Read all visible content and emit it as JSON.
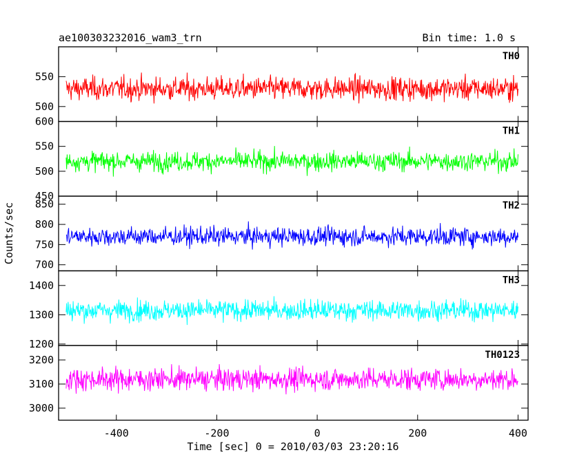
{
  "chart_data": {
    "type": "line",
    "title": "ae100303232016_wam3_trn",
    "subtitle": "Bin time: 1.0 s",
    "xlabel": "Time [sec] 0 = 2010/03/03 23:20:16",
    "ylabel": "Counts/sec",
    "xlim": [
      -515,
      420
    ],
    "x_ticks": [
      -400,
      -200,
      0,
      200,
      400
    ],
    "x_range_data": [
      -500,
      400
    ],
    "bin_time_s": 1.0,
    "panels": [
      {
        "name": "TH0",
        "color": "#ff0000",
        "ylim": [
          475,
          600
        ],
        "y_ticks": [
          500,
          550
        ],
        "y_tick_labels": [
          "500",
          "550"
        ],
        "mean": 530,
        "spread": 25
      },
      {
        "name": "TH1",
        "color": "#00ff00",
        "ylim": [
          450,
          600
        ],
        "y_ticks": [
          450,
          500,
          550,
          600
        ],
        "y_tick_labels": [
          "450",
          "500",
          "550",
          "600"
        ],
        "mean": 520,
        "spread": 25
      },
      {
        "name": "TH2",
        "color": "#0000ff",
        "ylim": [
          685,
          870
        ],
        "y_ticks": [
          700,
          750,
          800,
          850
        ],
        "y_tick_labels": [
          "700",
          "750",
          "800",
          "850"
        ],
        "mean": 770,
        "spread": 30
      },
      {
        "name": "TH3",
        "color": "#00ffff",
        "ylim": [
          1195,
          1450
        ],
        "y_ticks": [
          1200,
          1300,
          1400
        ],
        "y_tick_labels": [
          "1200",
          "1300",
          "1400"
        ],
        "mean": 1315,
        "spread": 45
      },
      {
        "name": "TH0123",
        "color": "#ff00ff",
        "ylim": [
          2950,
          3260
        ],
        "y_ticks": [
          3000,
          3100,
          3200
        ],
        "y_tick_labels": [
          "3000",
          "3100",
          "3200"
        ],
        "mean": 3120,
        "spread": 60
      }
    ]
  }
}
